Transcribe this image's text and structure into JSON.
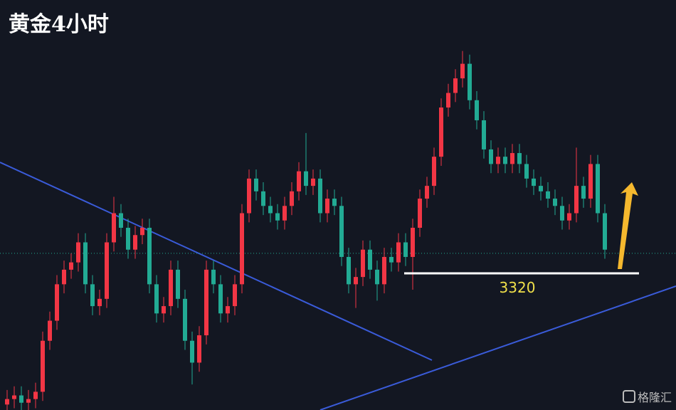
{
  "chart_data": {
    "type": "candlestick",
    "title": "黄金4小时",
    "watermark": "格隆汇",
    "up_color": "#f23645",
    "down_color": "#22ab94",
    "ylim": [
      3245,
      3470
    ],
    "level": 3320,
    "price_line": 3331,
    "open": [
      3248,
      3251,
      3253,
      3249,
      3251,
      3255,
      3283,
      3294,
      3314,
      3322,
      3326,
      3337,
      3314,
      3302,
      3306,
      3337,
      3353,
      3345,
      3333,
      3341,
      3345,
      3314,
      3298,
      3302,
      3322,
      3306,
      3283,
      3271,
      3286,
      3322,
      3314,
      3298,
      3302,
      3314,
      3353,
      3372,
      3365,
      3357,
      3353,
      3349,
      3357,
      3365,
      3376,
      3368,
      3372,
      3353,
      3361,
      3357,
      3329,
      3314,
      3318,
      3333,
      3322,
      3314,
      3329,
      3326,
      3337,
      3329,
      3345,
      3361,
      3368,
      3384,
      3411,
      3419,
      3427,
      3435,
      3415,
      3404,
      3388,
      3380,
      3384,
      3380,
      3386,
      3380,
      3372,
      3368,
      3365,
      3361,
      3357,
      3349,
      3353,
      3368,
      3361,
      3380,
      3353
    ],
    "high": [
      3256,
      3258,
      3258,
      3256,
      3260,
      3288,
      3299,
      3319,
      3327,
      3331,
      3342,
      3342,
      3319,
      3311,
      3342,
      3362,
      3358,
      3350,
      3346,
      3350,
      3350,
      3319,
      3307,
      3327,
      3327,
      3311,
      3288,
      3291,
      3327,
      3327,
      3319,
      3307,
      3319,
      3358,
      3377,
      3377,
      3370,
      3362,
      3358,
      3362,
      3370,
      3381,
      3397,
      3377,
      3377,
      3366,
      3366,
      3362,
      3334,
      3323,
      3338,
      3338,
      3327,
      3334,
      3334,
      3342,
      3342,
      3350,
      3366,
      3373,
      3389,
      3416,
      3424,
      3432,
      3442,
      3440,
      3420,
      3409,
      3393,
      3389,
      3389,
      3391,
      3391,
      3385,
      3377,
      3373,
      3370,
      3366,
      3362,
      3358,
      3389,
      3373,
      3385,
      3385,
      3358
    ],
    "low": [
      3243,
      3246,
      3244,
      3244,
      3246,
      3250,
      3278,
      3289,
      3309,
      3317,
      3321,
      3309,
      3297,
      3297,
      3301,
      3332,
      3340,
      3328,
      3328,
      3336,
      3309,
      3293,
      3293,
      3297,
      3301,
      3278,
      3259,
      3266,
      3281,
      3309,
      3293,
      3293,
      3297,
      3309,
      3348,
      3360,
      3352,
      3348,
      3344,
      3344,
      3352,
      3360,
      3363,
      3363,
      3348,
      3348,
      3352,
      3324,
      3309,
      3301,
      3313,
      3317,
      3305,
      3309,
      3321,
      3321,
      3324,
      3311,
      3340,
      3356,
      3363,
      3379,
      3406,
      3414,
      3422,
      3410,
      3399,
      3383,
      3375,
      3375,
      3375,
      3375,
      3375,
      3367,
      3363,
      3360,
      3356,
      3352,
      3344,
      3344,
      3348,
      3356,
      3356,
      3348,
      3328
    ],
    "close": [
      3251,
      3253,
      3249,
      3251,
      3255,
      3283,
      3294,
      3314,
      3322,
      3326,
      3337,
      3314,
      3302,
      3306,
      3337,
      3353,
      3345,
      3333,
      3341,
      3345,
      3314,
      3298,
      3302,
      3322,
      3306,
      3283,
      3271,
      3286,
      3322,
      3314,
      3298,
      3302,
      3314,
      3353,
      3372,
      3365,
      3357,
      3353,
      3349,
      3357,
      3365,
      3376,
      3368,
      3372,
      3353,
      3361,
      3357,
      3329,
      3314,
      3318,
      3333,
      3322,
      3314,
      3329,
      3326,
      3337,
      3329,
      3345,
      3361,
      3368,
      3384,
      3411,
      3419,
      3427,
      3435,
      3415,
      3404,
      3388,
      3380,
      3384,
      3380,
      3386,
      3380,
      3372,
      3368,
      3365,
      3361,
      3357,
      3349,
      3353,
      3368,
      3361,
      3380,
      3353,
      3333
    ]
  }
}
